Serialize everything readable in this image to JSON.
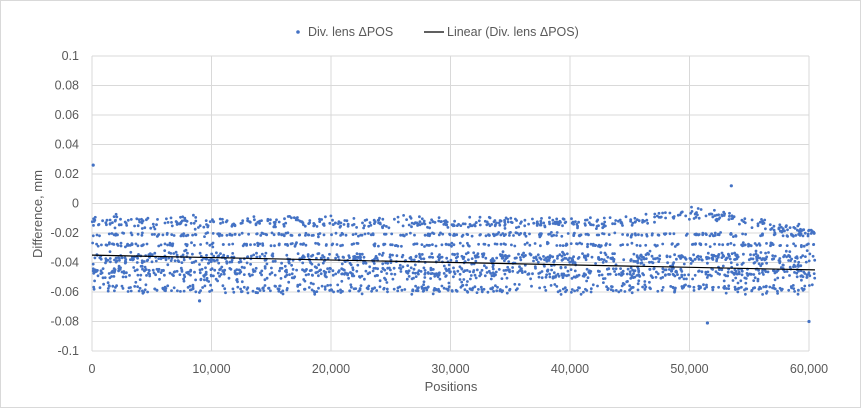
{
  "chart_data": {
    "type": "scatter",
    "title": "",
    "xlabel": "Positions",
    "ylabel": "Difference, mm",
    "xlim": [
      0,
      60000
    ],
    "ylim": [
      -0.1,
      0.1
    ],
    "x_ticks": [
      0,
      10000,
      20000,
      30000,
      40000,
      50000,
      60000
    ],
    "x_tick_labels": [
      "0",
      "10,000",
      "20,000",
      "30,000",
      "40,000",
      "50,000",
      "60,000"
    ],
    "y_ticks": [
      0.1,
      0.08,
      0.06,
      0.04,
      0.02,
      0,
      -0.02,
      -0.04,
      -0.06,
      -0.08,
      -0.1
    ],
    "y_tick_labels": [
      "0.1",
      "0.08",
      "0.06",
      "0.04",
      "0.02",
      "0",
      "-0.02",
      "-0.04",
      "-0.06",
      "-0.08",
      "-0.1"
    ],
    "grid": true,
    "legend_position": "top",
    "legend": {
      "scatter_label": "Div. lens ΔPOS",
      "trend_label": "Linear  (Div. lens ΔPOS)"
    },
    "series": [
      {
        "name": "Div. lens ΔPOS",
        "kind": "scatter",
        "color": "#4472C4",
        "bands": [
          {
            "x": [
              0,
              60500
            ],
            "y_center": -0.013,
            "y_spread": 0.006
          },
          {
            "x": [
              0,
              60500
            ],
            "y_center": -0.021,
            "y_spread": 0.002
          },
          {
            "x": [
              0,
              60500
            ],
            "y_center": -0.028,
            "y_spread": 0.002
          },
          {
            "x": [
              0,
              60500
            ],
            "y_center": -0.037,
            "y_spread": 0.006
          },
          {
            "x": [
              0,
              60500
            ],
            "y_center": -0.047,
            "y_spread": 0.008
          },
          {
            "x": [
              0,
              60500
            ],
            "y_center": -0.058,
            "y_spread": 0.005
          }
        ],
        "notable_points": [
          {
            "x": 100,
            "y": 0.026
          },
          {
            "x": 53500,
            "y": 0.012
          },
          {
            "x": 51500,
            "y": -0.081
          },
          {
            "x": 60000,
            "y": -0.08
          },
          {
            "x": 9000,
            "y": -0.066
          }
        ]
      },
      {
        "name": "Linear  (Div. lens ΔPOS)",
        "kind": "trendline",
        "color": "#000000",
        "x": [
          0,
          60500
        ],
        "y": [
          -0.035,
          -0.045
        ]
      }
    ],
    "colors": {
      "points": "#4472C4",
      "trend": "#000000",
      "grid": "#d9d9d9",
      "axis_text": "#595959"
    }
  }
}
